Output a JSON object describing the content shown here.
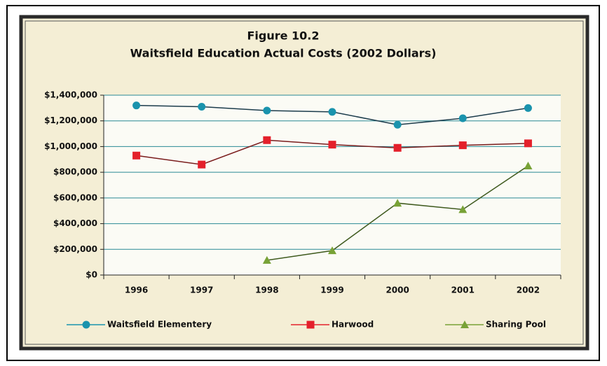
{
  "chart_data": {
    "type": "line",
    "title": "Figure 10.2",
    "subtitle": "Waitsfield Education Actual Costs (2002 Dollars)",
    "categories": [
      "1996",
      "1997",
      "1998",
      "1999",
      "2000",
      "2001",
      "2002"
    ],
    "series": [
      {
        "name": "Waitsfield Elementery",
        "color": "#1a93ad",
        "line_color": "#1c3c4c",
        "marker": "circle",
        "values": [
          1320000,
          1310000,
          1280000,
          1270000,
          1170000,
          1220000,
          1300000
        ]
      },
      {
        "name": "Harwood",
        "color": "#e4202b",
        "line_color": "#7a1c1c",
        "marker": "square",
        "values": [
          930000,
          860000,
          1050000,
          1015000,
          990000,
          1010000,
          1025000
        ]
      },
      {
        "name": "Sharing Pool",
        "color": "#78a236",
        "line_color": "#3f5a1e",
        "marker": "triangle",
        "values": [
          null,
          null,
          115000,
          190000,
          560000,
          510000,
          850000
        ]
      }
    ],
    "ylim": [
      0,
      1400000
    ],
    "yticks": [
      {
        "value": 0,
        "label": "$0"
      },
      {
        "value": 200000,
        "label": "$200,000"
      },
      {
        "value": 400000,
        "label": "$400,000"
      },
      {
        "value": 600000,
        "label": "$600,000"
      },
      {
        "value": 800000,
        "label": "$800,000"
      },
      {
        "value": 1000000,
        "label": "$1,000,000"
      },
      {
        "value": 1200000,
        "label": "$1,200,000"
      },
      {
        "value": 1400000,
        "label": "$1,400,000"
      }
    ],
    "grid": true,
    "grid_color": "#2a8a95",
    "legend": "bottom"
  }
}
